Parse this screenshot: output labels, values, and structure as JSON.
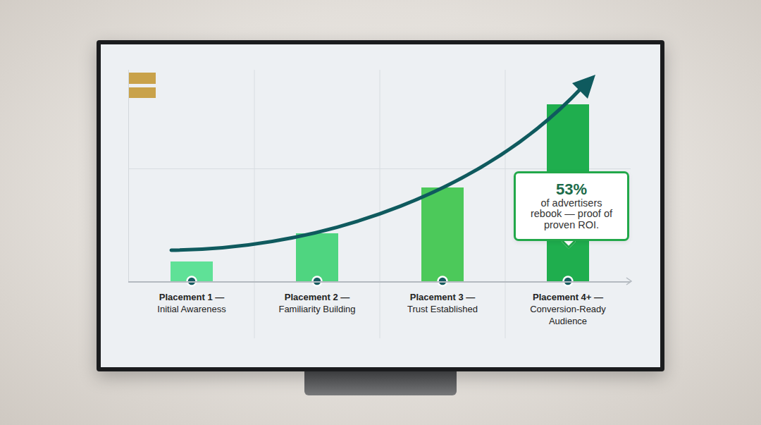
{
  "chart_data": {
    "type": "bar",
    "categories": [
      "Placement 1 — Initial Awareness",
      "Placement 2 — Familiarity Building",
      "Placement 3 — Trust Established",
      "Placement 4+ — Conversion-Ready Audience"
    ],
    "values": [
      28,
      68,
      133,
      251
    ],
    "colors": [
      "#5fe197",
      "#4fd580",
      "#4cc95a",
      "#1fae4e"
    ],
    "ylim": [
      0,
      300
    ],
    "yticks": [
      0,
      160
    ],
    "grid": true,
    "tick_labels": "x",
    "annotation": {
      "headline": "53%",
      "text": "of advertisers rebook — proof of proven ROI."
    }
  }
}
